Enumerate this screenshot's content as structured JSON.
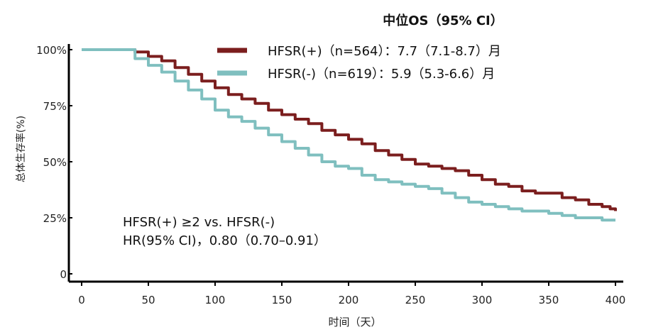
{
  "chart_data": {
    "type": "line",
    "title": "中位OS（95% CI）",
    "xlabel": "时间（天）",
    "ylabel": "总体生存率(%)",
    "xlim": [
      0,
      400
    ],
    "ylim": [
      0,
      100
    ],
    "x_ticks": [
      0,
      50,
      100,
      150,
      200,
      250,
      300,
      350,
      400
    ],
    "x_tick_labels": [
      "0",
      "50",
      "100",
      "150",
      "200",
      "250",
      "300",
      "350",
      "400"
    ],
    "y_ticks": [
      0,
      25,
      50,
      75,
      100
    ],
    "y_tick_labels": [
      "0",
      "25%",
      "50%",
      "75%",
      "100%"
    ],
    "grid": false,
    "legend_position": "top-center",
    "series": [
      {
        "name": "HFSR(+)（n=564）：7.7（7.1-8.7）月",
        "color": "#7b1e1e",
        "points": [
          [
            0,
            100
          ],
          [
            30,
            100
          ],
          [
            40,
            99
          ],
          [
            50,
            97
          ],
          [
            60,
            95
          ],
          [
            70,
            92
          ],
          [
            80,
            89
          ],
          [
            90,
            86
          ],
          [
            100,
            83
          ],
          [
            110,
            80
          ],
          [
            120,
            78
          ],
          [
            130,
            76
          ],
          [
            140,
            73
          ],
          [
            150,
            71
          ],
          [
            160,
            69
          ],
          [
            170,
            67
          ],
          [
            180,
            64
          ],
          [
            190,
            62
          ],
          [
            200,
            60
          ],
          [
            210,
            58
          ],
          [
            220,
            55
          ],
          [
            230,
            53
          ],
          [
            240,
            51
          ],
          [
            250,
            49
          ],
          [
            260,
            48
          ],
          [
            270,
            47
          ],
          [
            280,
            46
          ],
          [
            290,
            44
          ],
          [
            300,
            42
          ],
          [
            310,
            40
          ],
          [
            320,
            39
          ],
          [
            330,
            37
          ],
          [
            340,
            36
          ],
          [
            350,
            36
          ],
          [
            360,
            34
          ],
          [
            370,
            33
          ],
          [
            380,
            31
          ],
          [
            390,
            30
          ],
          [
            396,
            29
          ],
          [
            400,
            28
          ]
        ]
      },
      {
        "name": "HFSR(-)（n=619）：5.9（5.3-6.6）月",
        "color": "#7fbfbf",
        "points": [
          [
            0,
            100
          ],
          [
            30,
            100
          ],
          [
            40,
            96
          ],
          [
            50,
            93
          ],
          [
            60,
            90
          ],
          [
            70,
            86
          ],
          [
            80,
            82
          ],
          [
            90,
            78
          ],
          [
            100,
            73
          ],
          [
            110,
            70
          ],
          [
            120,
            68
          ],
          [
            130,
            65
          ],
          [
            140,
            62
          ],
          [
            150,
            59
          ],
          [
            160,
            56
          ],
          [
            170,
            53
          ],
          [
            180,
            50
          ],
          [
            190,
            48
          ],
          [
            200,
            47
          ],
          [
            210,
            44
          ],
          [
            220,
            42
          ],
          [
            230,
            41
          ],
          [
            240,
            40
          ],
          [
            250,
            39
          ],
          [
            260,
            38
          ],
          [
            270,
            36
          ],
          [
            280,
            34
          ],
          [
            290,
            32
          ],
          [
            300,
            31
          ],
          [
            310,
            30
          ],
          [
            320,
            29
          ],
          [
            330,
            28
          ],
          [
            340,
            28
          ],
          [
            350,
            27
          ],
          [
            360,
            26
          ],
          [
            370,
            25
          ],
          [
            380,
            25
          ],
          [
            390,
            24
          ],
          [
            400,
            24
          ]
        ]
      }
    ],
    "annotations": [
      "HFSR(+) ≥2 vs. HFSR(-)",
      "HR(95% CI)，0.80（0.70–0.91）"
    ]
  }
}
